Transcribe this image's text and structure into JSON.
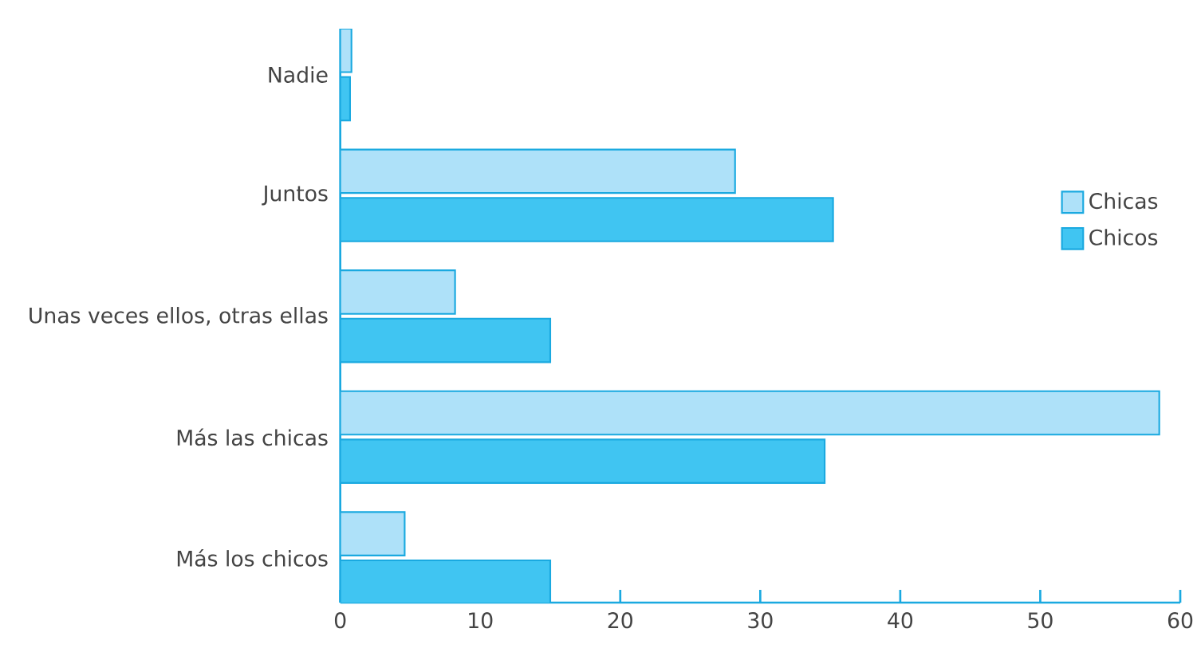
{
  "chart_data": {
    "type": "bar",
    "orientation": "horizontal",
    "categories": [
      "Nadie",
      "Juntos",
      "Unas veces ellos, otras ellas",
      "Más las chicas",
      "Más los chicos"
    ],
    "series": [
      {
        "name": "Chicas",
        "color": "#aee1f9",
        "values": [
          0.8,
          28.2,
          8.2,
          58.5,
          4.6
        ]
      },
      {
        "name": "Chicos",
        "color": "#40c5f2",
        "values": [
          0.7,
          35.2,
          15,
          34.6,
          15
        ]
      }
    ],
    "xlim": [
      0,
      60
    ],
    "xticks": [
      0,
      10,
      20,
      30,
      40,
      50,
      60
    ],
    "legend": "right"
  }
}
